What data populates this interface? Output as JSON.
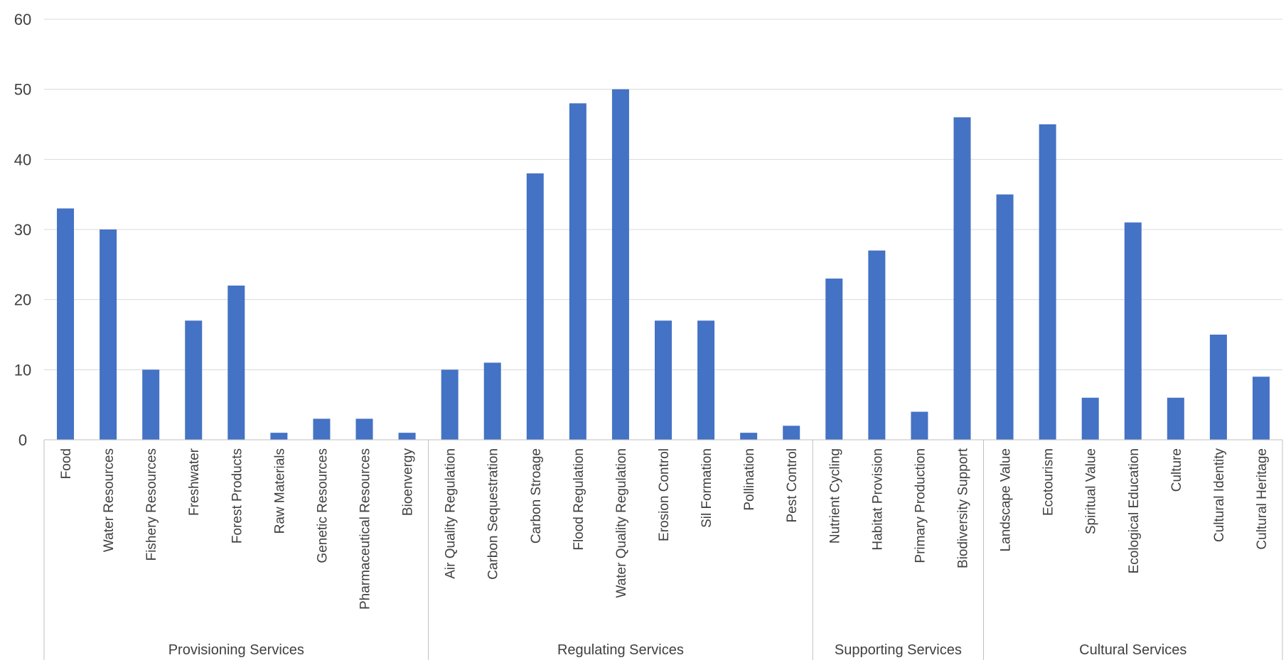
{
  "chart_data": {
    "type": "bar",
    "title": "",
    "xlabel": "",
    "ylabel": "",
    "ylim": [
      0,
      60
    ],
    "yticks": [
      0,
      10,
      20,
      30,
      40,
      50,
      60
    ],
    "grid": true,
    "legend": "none",
    "bar_color": "#4472C4",
    "gridline_color": "#D9D9D9",
    "axis_color": "#BFBFBF",
    "text_color": "#404040",
    "categories": [
      "Food",
      "Water Resources",
      "Fishery Resources",
      "Freshwater",
      "Forest Products",
      "Raw Materials",
      "Genetic Resources",
      "Pharmaceutical Resources",
      "Bioenvergy",
      "Air Quality Regulation",
      "Carbon Sequestration",
      "Carbon Stroage",
      "Flood Regulation",
      "Water Quality Regulation",
      "Erosion Control",
      "Sil Formation",
      "Pollination",
      "Pest Control",
      "Nutrient Cycling",
      "Habitat Provision",
      "Primary Production",
      "Biodiversity Support",
      "Landscape Value",
      "Ecotourism",
      "Spiritual Value",
      "Ecological Education",
      "Culture",
      "Cultural Identity",
      "Cultural Heritage"
    ],
    "values": [
      33,
      30,
      10,
      17,
      22,
      1,
      3,
      3,
      1,
      10,
      11,
      38,
      48,
      50,
      17,
      17,
      1,
      2,
      23,
      27,
      4,
      46,
      35,
      45,
      6,
      31,
      6,
      15,
      9
    ],
    "groups": [
      {
        "label": "Provisioning Services",
        "count": 9
      },
      {
        "label": "Regulating Services",
        "count": 9
      },
      {
        "label": "Supporting Services",
        "count": 4
      },
      {
        "label": "Cultural Services",
        "count": 7
      }
    ]
  }
}
